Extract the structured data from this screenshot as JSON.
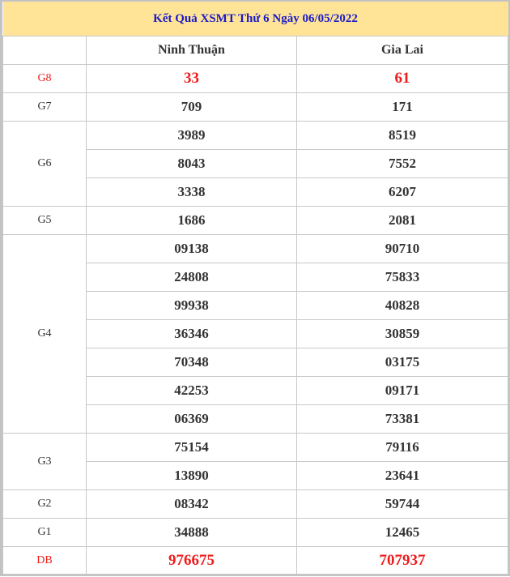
{
  "title": "Kết Quả XSMT Thứ 6 Ngày 06/05/2022",
  "columns": [
    "",
    "Ninh Thuận",
    "Gia Lai"
  ],
  "colors": {
    "header_bg": "#ffe497",
    "title": "#1a1ac8",
    "highlight": "#f01c1c"
  },
  "prizes": [
    {
      "label": "G8",
      "highlight": true,
      "rows": [
        [
          "33",
          "61"
        ]
      ]
    },
    {
      "label": "G7",
      "rows": [
        [
          "709",
          "171"
        ]
      ]
    },
    {
      "label": "G6",
      "rows": [
        [
          "3989",
          "8519"
        ],
        [
          "8043",
          "7552"
        ],
        [
          "3338",
          "6207"
        ]
      ]
    },
    {
      "label": "G5",
      "rows": [
        [
          "1686",
          "2081"
        ]
      ]
    },
    {
      "label": "G4",
      "rows": [
        [
          "09138",
          "90710"
        ],
        [
          "24808",
          "75833"
        ],
        [
          "99938",
          "40828"
        ],
        [
          "36346",
          "30859"
        ],
        [
          "70348",
          "03175"
        ],
        [
          "42253",
          "09171"
        ],
        [
          "06369",
          "73381"
        ]
      ]
    },
    {
      "label": "G3",
      "rows": [
        [
          "75154",
          "79116"
        ],
        [
          "13890",
          "23641"
        ]
      ]
    },
    {
      "label": "G2",
      "rows": [
        [
          "08342",
          "59744"
        ]
      ]
    },
    {
      "label": "G1",
      "rows": [
        [
          "34888",
          "12465"
        ]
      ]
    },
    {
      "label": "DB",
      "highlight": true,
      "rows": [
        [
          "976675",
          "707937"
        ]
      ]
    }
  ]
}
